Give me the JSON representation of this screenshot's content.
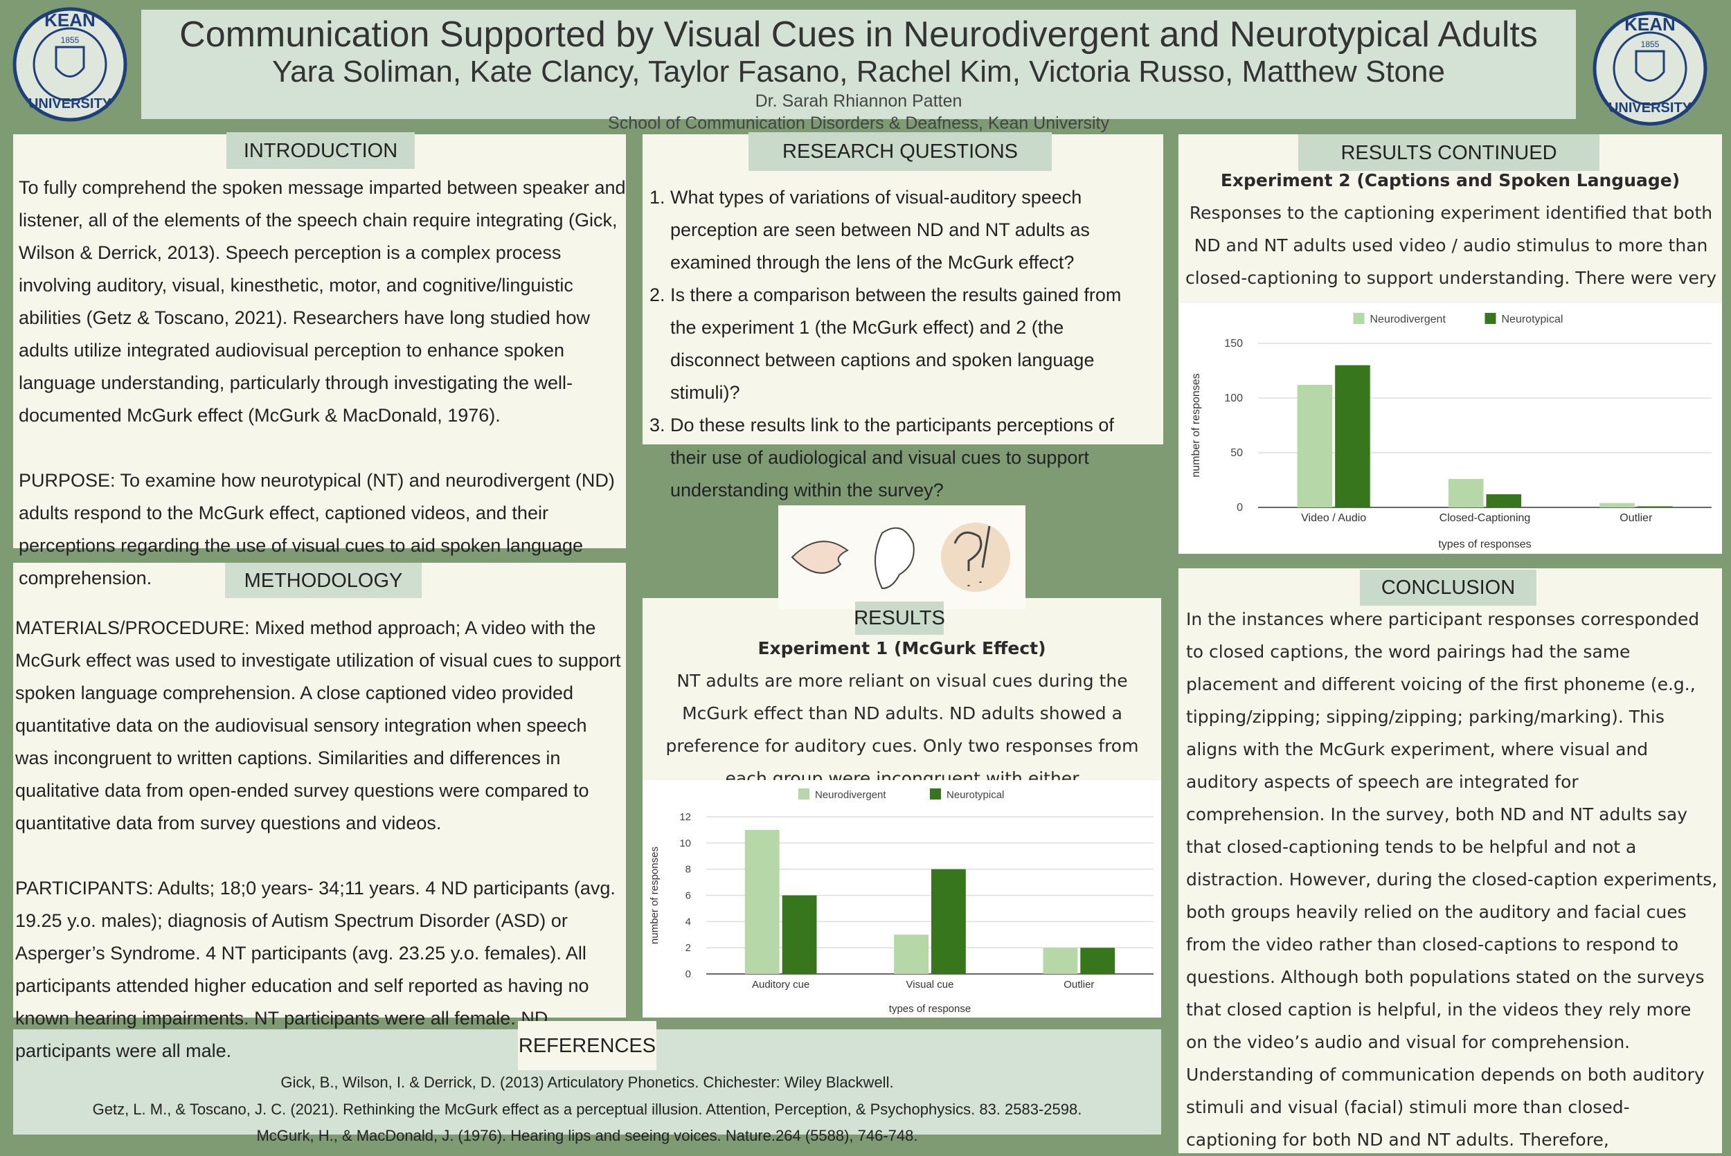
{
  "header": {
    "title": "Communication Supported by Visual Cues in Neurodivergent and Neurotypical Adults",
    "authors": "Yara Soliman, Kate Clancy, Taylor Fasano, Rachel Kim, Victoria Russo, Matthew Stone",
    "advisor": "Dr. Sarah Rhiannon Patten",
    "school": "School of Communication Disorders & Deafness, Kean University"
  },
  "logo": {
    "top": "KEAN",
    "bottom": "UNIVERSITY",
    "year": "1855"
  },
  "introduction": {
    "heading": "INTRODUCTION",
    "paragraphs": [
      "To fully comprehend the spoken message imparted between speaker and listener, all of the elements of the speech chain require integrating (Gick, Wilson & Derrick, 2013). Speech perception is a complex process involving auditory, visual, kinesthetic, motor, and cognitive/linguistic abilities (Getz & Toscano, 2021). Researchers have long studied how adults utilize integrated audiovisual perception to enhance spoken language understanding, particularly through investigating the well-documented McGurk effect (McGurk & MacDonald, 1976).",
      "PURPOSE: To examine how neurotypical (NT) and neurodivergent (ND) adults respond to the McGurk effect, captioned videos, and their perceptions regarding the use of visual cues to aid spoken language comprehension."
    ]
  },
  "methodology": {
    "heading": "METHODOLOGY",
    "paragraphs": [
      "MATERIALS/PROCEDURE: Mixed method approach; A video with the McGurk effect was used to investigate utilization of visual cues to support spoken language comprehension. A close captioned video provided quantitative data on the audiovisual sensory integration when speech was incongruent to written captions. Similarities and differences in qualitative data from open-ended survey questions were compared to quantitative data from survey questions and videos.",
      "PARTICIPANTS: Adults; 18;0 years- 34;11 years. 4 ND participants (avg. 19.25 y.o. males); diagnosis of Autism Spectrum Disorder (ASD) or Asperger’s Syndrome. 4 NT participants (avg. 23.25 y.o. females). All participants attended higher education and self reported as having no known hearing impairments. NT participants were all female. ND participants were all male."
    ]
  },
  "research_questions": {
    "heading": "RESEARCH QUESTIONS",
    "items": [
      "What types of variations of visual-auditory speech perception are seen between ND and NT adults as examined through the lens of the McGurk effect?",
      "Is there a comparison between the results gained from the experiment 1 (the McGurk effect) and 2 (the disconnect between captions and spoken language stimuli)?",
      "Do these results link to the participants perceptions of their use of audiological and visual cues to support understanding within the survey?"
    ]
  },
  "results": {
    "heading": "RESULTS",
    "subheading": "Experiment 1 (McGurk Effect)",
    "text": "NT adults are more reliant on visual cues during the McGurk effect than ND adults. ND adults showed a preference for auditory cues. Only two responses from each group were incongruent with either"
  },
  "results_continued": {
    "heading": "RESULTS CONTINUED",
    "subheading": "Experiment 2 (Captions and Spoken Language)",
    "text": "Responses to the captioning experiment identified that both ND and NT adults used video / audio stimulus to more than closed-captioning to support understanding. There were very"
  },
  "conclusion": {
    "heading": "CONCLUSION",
    "text": "In the instances where participant responses corresponded to closed captions, the word pairings had the same placement and different voicing of the first phoneme (e.g., tipping/zipping; sipping/zipping; parking/marking). This aligns with the McGurk experiment, where visual and auditory aspects of speech are integrated for comprehension. In the survey, both ND and NT adults say that closed-captioning tends to be helpful and not a distraction. However, during the closed-caption experiments, both groups heavily relied on the auditory and facial cues from the video rather than closed-captions to respond to questions. Although both populations stated on the surveys that closed caption is helpful, in the videos they rely more on the video’s audio and visual for comprehension. Understanding of communication depends on both auditory stimuli and visual (facial) stimuli more than closed-captioning for both ND and NT adults. Therefore,"
  },
  "references": {
    "heading": "REFERENCES",
    "items": [
      "Gick, B., Wilson, I. & Derrick, D. (2013) Articulatory Phonetics. Chichester: Wiley Blackwell.",
      "Getz, L. M., & Toscano, J. C. (2021). Rethinking the McGurk effect as a perceptual illusion. Attention, Perception, & Psychophysics. 83. 2583-2598.",
      "McGurk, H., & MacDonald, J. (1976). Hearing lips and seeing voices. Nature.264 (5588), 746-748."
    ]
  },
  "chart_data": [
    {
      "type": "bar",
      "categories": [
        "Auditory cue",
        "Visual cue",
        "Outlier"
      ],
      "series": [
        {
          "name": "Neurodivergent",
          "color": "#b6d7a8",
          "values": [
            11,
            3,
            2
          ]
        },
        {
          "name": "Neurotypical",
          "color": "#38761d",
          "values": [
            6,
            8,
            2
          ]
        }
      ],
      "ylim": [
        0,
        12
      ],
      "yticks": [
        0,
        2,
        4,
        6,
        8,
        10,
        12
      ],
      "grid": true,
      "legend": "top",
      "xlabel": "types of response",
      "ylabel": "number of responses"
    },
    {
      "type": "bar",
      "categories": [
        "Video / Audio",
        "Closed-Captioning",
        "Outlier"
      ],
      "series": [
        {
          "name": "Neurodivergent",
          "color": "#b6d7a8",
          "values": [
            112,
            26,
            4
          ]
        },
        {
          "name": "Neurotypical",
          "color": "#38761d",
          "values": [
            130,
            12,
            1
          ]
        }
      ],
      "ylim": [
        0,
        150
      ],
      "yticks": [
        0,
        50,
        100,
        150
      ],
      "grid": true,
      "legend": "top",
      "xlabel": "types of responses",
      "ylabel": "number of responses"
    }
  ]
}
